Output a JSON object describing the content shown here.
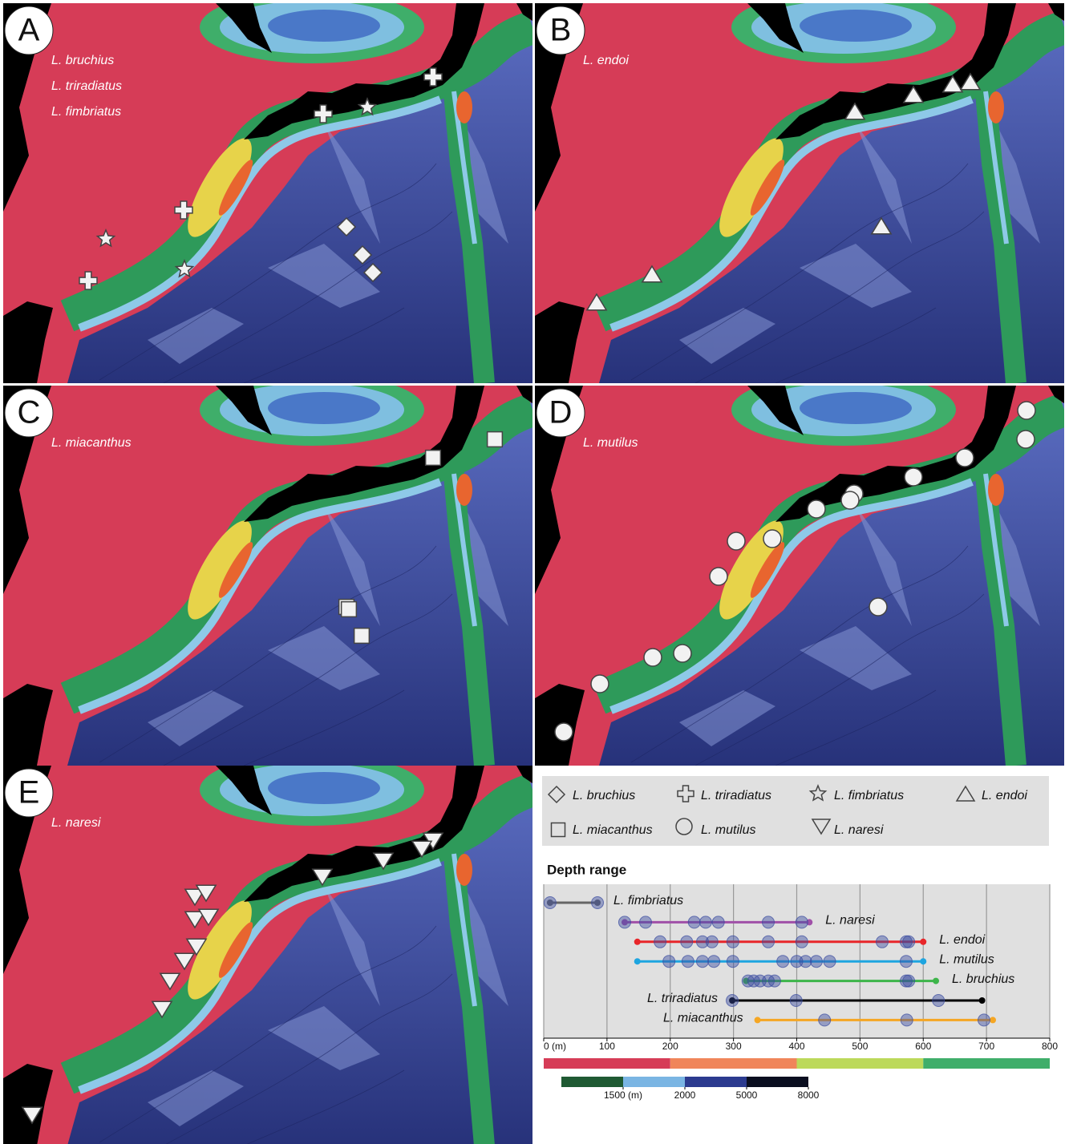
{
  "panels": [
    {
      "letter": "A",
      "species": [
        "L. bruchius",
        "L. triradiatus",
        "L. fimbriatus"
      ]
    },
    {
      "letter": "B",
      "species": [
        "L. endoi"
      ]
    },
    {
      "letter": "C",
      "species": [
        "L. miacanthus"
      ]
    },
    {
      "letter": "D",
      "species": [
        "L. mutilus"
      ]
    },
    {
      "letter": "E",
      "species": [
        "L. naresi"
      ]
    }
  ],
  "legend": {
    "items": [
      "L. bruchius",
      "L. triradiatus",
      "L. fimbriatus",
      "L. endoi",
      "L. miacanthus",
      "L. mutilus",
      "L. naresi"
    ]
  },
  "chart_data": {
    "type": "range",
    "title": "Depth range",
    "xlim": [
      0,
      800
    ],
    "xticks": [
      {
        "value": 0,
        "label": "0 (m)"
      },
      100,
      200,
      300,
      400,
      500,
      600,
      700,
      800
    ],
    "grid": true,
    "series": [
      {
        "name": "L. fimbriatus",
        "color": "#666666",
        "range": [
          10,
          85
        ],
        "values": [
          10,
          85
        ]
      },
      {
        "name": "L. naresi",
        "color": "#a050a8",
        "range": [
          128,
          420
        ],
        "values": [
          128,
          161,
          238,
          256,
          276,
          355,
          408
        ]
      },
      {
        "name": "L. endoi",
        "color": "#e8262a",
        "range": [
          148,
          600
        ],
        "values": [
          184,
          226,
          251,
          266,
          299,
          355,
          408,
          535,
          573,
          577
        ]
      },
      {
        "name": "L. mutilus",
        "color": "#1ea5e0",
        "range": [
          148,
          600
        ],
        "values": [
          198,
          228,
          251,
          269,
          299,
          378,
          400,
          414,
          431,
          452,
          573
        ]
      },
      {
        "name": "L. bruchius",
        "color": "#3db54a",
        "range": [
          320,
          620
        ],
        "values": [
          323,
          332,
          342,
          355,
          365,
          573,
          577
        ]
      },
      {
        "name": "L. triradiatus",
        "color": "#000000",
        "range": [
          298,
          693
        ],
        "values": [
          298,
          399,
          624
        ]
      },
      {
        "name": "L. miacanthus",
        "color": "#f5a623",
        "range": [
          338,
          710
        ],
        "values": [
          444,
          574,
          696
        ]
      }
    ],
    "depth_colors": [
      "#d63c57",
      "#f0855a",
      "#bcd95a",
      "#3fae6a"
    ],
    "deep_scale": {
      "colors": [
        "#1f5a33",
        "#7ab5e3",
        "#2c3b8f",
        "#0a0e1f"
      ],
      "ticks": [
        {
          "value": 1500,
          "label": "1500 (m)"
        },
        2000,
        5000,
        8000
      ]
    }
  }
}
